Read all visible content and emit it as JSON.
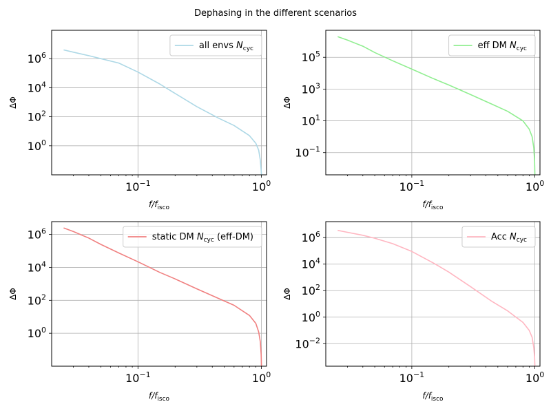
{
  "figure_title": "Dephasing in the different scenarios",
  "chart_data": [
    {
      "type": "line",
      "xscale": "log",
      "yscale": "log",
      "xlim": [
        0.02,
        1.1
      ],
      "ylim": [
        0.01,
        90000000.0
      ],
      "xlabel": "f/f_isco",
      "ylabel": "ΔΦ",
      "xticks": [
        {
          "value": 0.1,
          "base": "10",
          "exp": "−1"
        },
        {
          "value": 1,
          "base": "10",
          "exp": "0"
        }
      ],
      "yticks": [
        {
          "value": 1,
          "base": "10",
          "exp": "0"
        },
        {
          "value": 100,
          "base": "10",
          "exp": "2"
        },
        {
          "value": 10000,
          "base": "10",
          "exp": "4"
        },
        {
          "value": 1000000,
          "base": "10",
          "exp": "6"
        }
      ],
      "grid": true,
      "legend_position": "top-right",
      "series": [
        {
          "legend_main": "all envs ",
          "legend_math": "N",
          "legend_sub": "cyc",
          "color": "#add8e6",
          "x": [
            0.025,
            0.03,
            0.04,
            0.05,
            0.07,
            0.1,
            0.15,
            0.2,
            0.3,
            0.45,
            0.6,
            0.8,
            0.9,
            0.95,
            0.98,
            0.995,
            1.0
          ],
          "y": [
            4000000,
            2800000,
            1600000,
            1000000,
            500000,
            120000,
            18000,
            4000,
            500,
            80,
            25,
            5,
            1.5,
            0.5,
            0.1,
            0.02,
            0.01
          ]
        }
      ]
    },
    {
      "type": "line",
      "xscale": "log",
      "yscale": "log",
      "xlim": [
        0.02,
        1.1
      ],
      "ylim": [
        0.004,
        5000000.0
      ],
      "xlabel": "f/f_isco",
      "ylabel": "ΔΦ",
      "xticks": [
        {
          "value": 0.1,
          "base": "10",
          "exp": "−1"
        },
        {
          "value": 1,
          "base": "10",
          "exp": "0"
        }
      ],
      "yticks": [
        {
          "value": 0.1,
          "base": "10",
          "exp": "−1"
        },
        {
          "value": 10,
          "base": "10",
          "exp": "1"
        },
        {
          "value": 1000,
          "base": "10",
          "exp": "3"
        },
        {
          "value": 100000,
          "base": "10",
          "exp": "5"
        }
      ],
      "grid": true,
      "legend_position": "top-right",
      "series": [
        {
          "legend_main": "eff DM ",
          "legend_math": "N",
          "legend_sub": "cyc",
          "color": "#90ee90",
          "x": [
            0.025,
            0.03,
            0.04,
            0.05,
            0.07,
            0.1,
            0.15,
            0.2,
            0.3,
            0.45,
            0.6,
            0.8,
            0.9,
            0.95,
            0.98,
            0.995,
            1.0
          ],
          "y": [
            2000000,
            1200000,
            500000,
            200000,
            60000,
            18000,
            4500,
            1800,
            450,
            110,
            40,
            10,
            3,
            1,
            0.2,
            0.03,
            0.004
          ]
        }
      ]
    },
    {
      "type": "line",
      "xscale": "log",
      "yscale": "log",
      "xlim": [
        0.02,
        1.1
      ],
      "ylim": [
        0.01,
        6000000.0
      ],
      "xlabel": "f/f_isco",
      "ylabel": "ΔΦ",
      "xticks": [
        {
          "value": 0.1,
          "base": "10",
          "exp": "−1"
        },
        {
          "value": 1,
          "base": "10",
          "exp": "0"
        }
      ],
      "yticks": [
        {
          "value": 1,
          "base": "10",
          "exp": "0"
        },
        {
          "value": 100,
          "base": "10",
          "exp": "2"
        },
        {
          "value": 10000,
          "base": "10",
          "exp": "4"
        },
        {
          "value": 1000000,
          "base": "10",
          "exp": "6"
        }
      ],
      "grid": true,
      "legend_position": "top-right",
      "series": [
        {
          "legend_main": "static DM ",
          "legend_math": "N",
          "legend_sub": "cyc",
          "legend_tail": " (eff-DM)",
          "color": "#f08080",
          "x": [
            0.025,
            0.03,
            0.04,
            0.05,
            0.07,
            0.1,
            0.15,
            0.2,
            0.3,
            0.45,
            0.6,
            0.8,
            0.9,
            0.95,
            0.98,
            0.995,
            1.0
          ],
          "y": [
            2500000,
            1500000,
            600000,
            250000,
            75000,
            22000,
            5000,
            2000,
            500,
            130,
            50,
            12,
            4,
            1.2,
            0.3,
            0.05,
            0.01
          ]
        }
      ]
    },
    {
      "type": "line",
      "xscale": "log",
      "yscale": "log",
      "xlim": [
        0.02,
        1.1
      ],
      "ylim": [
        0.0002,
        16000000.0
      ],
      "xlabel": "f/f_isco",
      "ylabel": "ΔΦ",
      "xticks": [
        {
          "value": 0.1,
          "base": "10",
          "exp": "−1"
        },
        {
          "value": 1,
          "base": "10",
          "exp": "0"
        }
      ],
      "yticks": [
        {
          "value": 0.01,
          "base": "10",
          "exp": "−2"
        },
        {
          "value": 1,
          "base": "10",
          "exp": "0"
        },
        {
          "value": 100,
          "base": "10",
          "exp": "2"
        },
        {
          "value": 10000,
          "base": "10",
          "exp": "4"
        },
        {
          "value": 1000000,
          "base": "10",
          "exp": "6"
        }
      ],
      "grid": true,
      "legend_position": "top-right",
      "series": [
        {
          "legend_main": "Acc ",
          "legend_math": "N",
          "legend_sub": "cyc",
          "color": "#ffb6c1",
          "x": [
            0.025,
            0.03,
            0.04,
            0.05,
            0.07,
            0.1,
            0.15,
            0.2,
            0.3,
            0.45,
            0.6,
            0.8,
            0.9,
            0.95,
            0.98,
            0.995,
            1.0
          ],
          "y": [
            3500000,
            2500000,
            1500000,
            900000,
            350000,
            90000,
            12000,
            2500,
            200,
            15,
            3,
            0.4,
            0.1,
            0.03,
            0.005,
            0.001,
            0.0002
          ]
        }
      ]
    }
  ]
}
